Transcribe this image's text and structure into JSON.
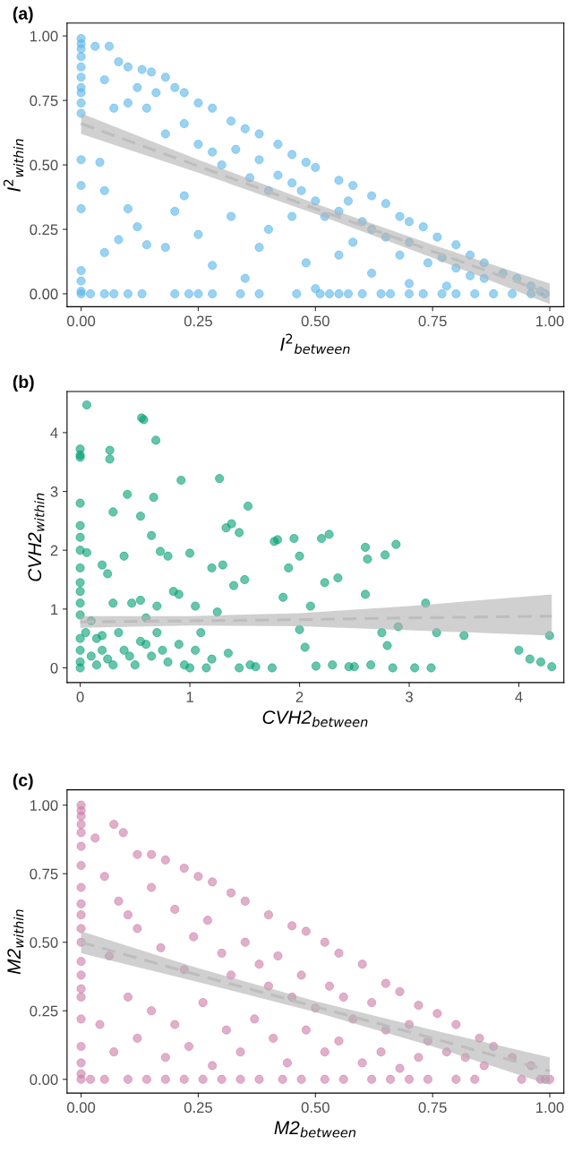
{
  "chart_data": [
    {
      "type": "scatter",
      "title": "(a)",
      "xlabel": "I$^{2}$$_{between}$",
      "ylabel": "I$^{2}$$_{within}$",
      "xlim": [
        -0.03,
        1.03
      ],
      "ylim": [
        -0.05,
        1.05
      ],
      "xticks": [
        {
          "value": 0,
          "label": "0.00"
        },
        {
          "value": 0.25,
          "label": "0.25"
        },
        {
          "value": 0.5,
          "label": "0.50"
        },
        {
          "value": 0.75,
          "label": "0.75"
        },
        {
          "value": 1,
          "label": "1.00"
        }
      ],
      "yticks": [
        {
          "value": 0,
          "label": "0.00"
        },
        {
          "value": 0.25,
          "label": "0.25"
        },
        {
          "value": 0.5,
          "label": "0.50"
        },
        {
          "value": 0.75,
          "label": "0.75"
        },
        {
          "value": 1,
          "label": "1.00"
        }
      ],
      "series": [
        {
          "marker": "circle",
          "color": "#56b4e9",
          "x": [
            0,
            0,
            0,
            0,
            0,
            0,
            0,
            0,
            0,
            0,
            0,
            0,
            0,
            0,
            0,
            0,
            0,
            0.03,
            0.06,
            0.08,
            0.1,
            0.13,
            0.15,
            0.18,
            0.2,
            0.22,
            0.25,
            0.28,
            0.32,
            0.35,
            0.38,
            0.42,
            0.45,
            0.48,
            0.5,
            0.55,
            0.58,
            0.62,
            0.65,
            0.68,
            0.7,
            0.73,
            0.76,
            0.8,
            0.83,
            0.86,
            0.9,
            0.93,
            0.96,
            0.98,
            0.05,
            0.07,
            0.1,
            0.12,
            0.14,
            0.16,
            0.18,
            0.22,
            0.25,
            0.28,
            0.3,
            0.33,
            0.36,
            0.38,
            0.4,
            0.42,
            0.45,
            0.47,
            0.5,
            0.52,
            0.55,
            0.57,
            0.6,
            0.62,
            0.65,
            0.68,
            0.7,
            0.74,
            0.77,
            0.8,
            0.83,
            0.86,
            0.04,
            0.05,
            0.08,
            0.05,
            0.1,
            0.12,
            0.14,
            0.18,
            0.2,
            0.22,
            0.25,
            0.28,
            0.32,
            0.35,
            0.38,
            0.4,
            0.45,
            0.48,
            0.5,
            0.55,
            0.58,
            0.62,
            0.7,
            0.78,
            0.02,
            0.05,
            0.07,
            0.1,
            0.13,
            0.2,
            0.23,
            0.25,
            0.28,
            0.34,
            0.38,
            0.46,
            0.51,
            0.53,
            0.55,
            0.57,
            0.6,
            0.64,
            0.66,
            0.7,
            0.73,
            0.77,
            0.8,
            0.84,
            0.88,
            0.92,
            0.96,
            0.99
          ],
          "values": [
            0.99,
            0.97,
            0.95,
            0.92,
            0.88,
            0.84,
            0.8,
            0.78,
            0.74,
            0.7,
            0.52,
            0.42,
            0.33,
            0.09,
            0.05,
            0.01,
            0,
            0.96,
            0.96,
            0.9,
            0.88,
            0.87,
            0.86,
            0.84,
            0.8,
            0.78,
            0.74,
            0.72,
            0.67,
            0.64,
            0.62,
            0.58,
            0.54,
            0.51,
            0.49,
            0.44,
            0.42,
            0.38,
            0.35,
            0.3,
            0.28,
            0.26,
            0.22,
            0.19,
            0.15,
            0.12,
            0.08,
            0.06,
            0.03,
            0.01,
            0.83,
            0.72,
            0.74,
            0.8,
            0.72,
            0.78,
            0.62,
            0.66,
            0.58,
            0.55,
            0.5,
            0.56,
            0.45,
            0.52,
            0.4,
            0.46,
            0.43,
            0.4,
            0.36,
            0.3,
            0.32,
            0.36,
            0.28,
            0.25,
            0.22,
            0.15,
            0.2,
            0.12,
            0.14,
            0.1,
            0.07,
            0.06,
            0.51,
            0.4,
            0.21,
            0.16,
            0.33,
            0.26,
            0.19,
            0.18,
            0.32,
            0.38,
            0.23,
            0.11,
            0.3,
            0.06,
            0.18,
            0.25,
            0.3,
            0.12,
            0.02,
            0.15,
            0.2,
            0.08,
            0.04,
            0.03,
            0,
            0,
            0,
            0,
            0,
            0,
            0,
            0,
            0,
            0,
            0,
            0,
            0,
            0,
            0,
            0,
            0,
            0,
            0,
            0,
            0,
            0,
            0,
            0,
            0,
            0,
            0,
            0
          ]
        },
        {
          "type": "line",
          "color": "#bdbdbd",
          "line_style": "dashed",
          "x": [
            0,
            0.25,
            0.5,
            0.75,
            1
          ],
          "values": [
            0.66,
            0.495,
            0.33,
            0.165,
            0.0
          ],
          "lower": [
            0.62,
            0.47,
            0.31,
            0.14,
            -0.04
          ],
          "upper": [
            0.7,
            0.52,
            0.35,
            0.19,
            0.04
          ]
        }
      ]
    },
    {
      "type": "scatter",
      "title": "(b)",
      "xlabel": "CVH2$_{between}$",
      "ylabel": "CVH2$_{within}$",
      "xlim": [
        -0.12,
        4.41
      ],
      "ylim": [
        -0.25,
        4.7
      ],
      "xticks": [
        0,
        1,
        2,
        3,
        4
      ],
      "yticks": [
        0,
        1,
        2,
        3,
        4
      ],
      "series": [
        {
          "marker": "circle",
          "color": "#009e73",
          "x": [
            0.06,
            0,
            0,
            0,
            0.27,
            0.27,
            0.56,
            0.58,
            0.69,
            0.92,
            1.27,
            0,
            0,
            0,
            0,
            0.06,
            0,
            0,
            0,
            0,
            0,
            0,
            0,
            0,
            0,
            0.3,
            0.43,
            0.55,
            0.67,
            0.65,
            0.73,
            0.8,
            0.4,
            0.2,
            0.25,
            0.3,
            0.47,
            0.55,
            0.6,
            0.7,
            0.85,
            0.9,
            1.0,
            1.05,
            1.1,
            1.2,
            1.3,
            1.38,
            1.33,
            1.45,
            1.53,
            1.5,
            1.4,
            1.25,
            1.35,
            1.55,
            1.77,
            1.8,
            1.9,
            1.95,
            2.0,
            2.2,
            2.27,
            2.23,
            2.1,
            2.0,
            2.05,
            1.85,
            2.35,
            2.6,
            2.62,
            2.6,
            2.78,
            2.88,
            2.75,
            2.8,
            2.9,
            3.15,
            3.25,
            3.5,
            4.0,
            4.1,
            4.2,
            4.28,
            4.3,
            0.1,
            0.15,
            0.2,
            0.25,
            0.3,
            0.35,
            0.4,
            0.45,
            0.5,
            0.55,
            0.6,
            0.65,
            0.7,
            0.75,
            0.8,
            0.9,
            0.95,
            1.05,
            1.2,
            1.0,
            1.45,
            1.6,
            1.75,
            2.15,
            2.3,
            2.45,
            2.65,
            2.85,
            3.05,
            3.2,
            2.5,
            0.15,
            0.1,
            0.05,
            0.2,
            1.15
          ],
          "values": [
            4.47,
            3.72,
            3.62,
            3.58,
            3.7,
            3.55,
            4.25,
            4.22,
            3.87,
            3.19,
            3.22,
            2.8,
            2.42,
            2.22,
            2.0,
            1.96,
            1.7,
            1.45,
            1.3,
            1.1,
            0.9,
            0.5,
            0.3,
            0.1,
            0,
            2.65,
            2.95,
            2.58,
            2.9,
            2.25,
            1.98,
            1.9,
            1.9,
            1.75,
            1.6,
            1.1,
            1.1,
            1.15,
            0.85,
            1.05,
            1.3,
            1.25,
            1.95,
            1.05,
            0.6,
            1.7,
            1.75,
            2.45,
            2.38,
            2.3,
            2.75,
            1.5,
            1.4,
            0.95,
            0.25,
            0.05,
            2.15,
            2.18,
            1.7,
            2.2,
            1.9,
            2.2,
            2.27,
            1.45,
            1.05,
            0.65,
            0.35,
            1.2,
            1.53,
            2.05,
            1.85,
            1.25,
            1.92,
            2.1,
            0.6,
            0.38,
            0.7,
            1.1,
            0.6,
            0.55,
            0.3,
            0.15,
            0.1,
            0.55,
            0.02,
            0.8,
            0.5,
            0.3,
            0.15,
            0.05,
            0.6,
            0.3,
            0.2,
            0.05,
            0.45,
            0.4,
            0.2,
            0.6,
            0.3,
            0.1,
            0.4,
            0.05,
            0.3,
            0.15,
            0,
            0,
            0.02,
            0,
            0.03,
            0.05,
            0.02,
            0.05,
            0,
            0,
            0,
            0.02,
            0.05,
            0.2,
            0.6,
            0.55,
            0
          ]
        },
        {
          "type": "line",
          "color": "#bdbdbd",
          "line_style": "dashed",
          "x": [
            0,
            1,
            2,
            3,
            4.3
          ],
          "values": [
            0.78,
            0.8,
            0.82,
            0.85,
            0.88
          ],
          "lower": [
            0.68,
            0.72,
            0.71,
            0.64,
            0.55
          ],
          "upper": [
            0.88,
            0.88,
            0.93,
            1.05,
            1.25
          ]
        }
      ]
    },
    {
      "type": "scatter",
      "title": "(c)",
      "xlabel": "M2$_{between}$",
      "ylabel": "M2$_{within}$",
      "xlim": [
        -0.03,
        1.03
      ],
      "ylim": [
        -0.05,
        1.056
      ],
      "xticks": [
        {
          "value": 0,
          "label": "0.00"
        },
        {
          "value": 0.25,
          "label": "0.25"
        },
        {
          "value": 0.5,
          "label": "0.50"
        },
        {
          "value": 0.75,
          "label": "0.75"
        },
        {
          "value": 1,
          "label": "1.00"
        }
      ],
      "yticks": [
        {
          "value": 0,
          "label": "0.00"
        },
        {
          "value": 0.25,
          "label": "0.25"
        },
        {
          "value": 0.5,
          "label": "0.50"
        },
        {
          "value": 0.75,
          "label": "0.75"
        },
        {
          "value": 1,
          "label": "1.00"
        }
      ],
      "series": [
        {
          "marker": "circle",
          "color": "#cc79a7",
          "x": [
            0,
            0,
            0,
            0,
            0,
            0,
            0,
            0,
            0,
            0,
            0,
            0,
            0,
            0,
            0,
            0,
            0,
            0,
            0,
            0,
            0,
            0.03,
            0.07,
            0.09,
            0.12,
            0.15,
            0.18,
            0.22,
            0.25,
            0.28,
            0.32,
            0.35,
            0.4,
            0.45,
            0.48,
            0.52,
            0.55,
            0.6,
            0.65,
            0.68,
            0.72,
            0.76,
            0.8,
            0.85,
            0.88,
            0.92,
            0.96,
            1.0,
            0.98,
            0.05,
            0.06,
            0.08,
            0.1,
            0.12,
            0.15,
            0.17,
            0.2,
            0.22,
            0.24,
            0.27,
            0.3,
            0.32,
            0.35,
            0.38,
            0.4,
            0.42,
            0.45,
            0.47,
            0.5,
            0.53,
            0.56,
            0.58,
            0.62,
            0.65,
            0.7,
            0.74,
            0.78,
            0.82,
            0.86,
            0.04,
            0.07,
            0.1,
            0.12,
            0.15,
            0.18,
            0.2,
            0.23,
            0.26,
            0.28,
            0.31,
            0.34,
            0.37,
            0.41,
            0.44,
            0.48,
            0.52,
            0.55,
            0.6,
            0.64,
            0.68,
            0.72,
            0.02,
            0.05,
            0.1,
            0.14,
            0.18,
            0.22,
            0.26,
            0.3,
            0.34,
            0.38,
            0.43,
            0.47,
            0.52,
            0.56,
            0.62,
            0.66,
            0.7,
            0.74,
            0.8,
            0.84,
            0.94,
            0.99
          ],
          "values": [
            1.0,
            0.98,
            0.96,
            0.93,
            0.9,
            0.85,
            0.78,
            0.7,
            0.64,
            0.6,
            0.55,
            0.5,
            0.43,
            0.38,
            0.33,
            0.3,
            0.22,
            0.12,
            0.06,
            0.02,
            0,
            0.88,
            0.93,
            0.9,
            0.82,
            0.82,
            0.8,
            0.77,
            0.74,
            0.72,
            0.68,
            0.65,
            0.6,
            0.56,
            0.54,
            0.5,
            0.46,
            0.42,
            0.35,
            0.32,
            0.27,
            0.24,
            0.2,
            0.15,
            0.12,
            0.08,
            0.05,
            0,
            0,
            0.74,
            0.45,
            0.65,
            0.6,
            0.55,
            0.7,
            0.48,
            0.62,
            0.4,
            0.52,
            0.58,
            0.46,
            0.38,
            0.5,
            0.42,
            0.34,
            0.45,
            0.3,
            0.38,
            0.26,
            0.34,
            0.3,
            0.22,
            0.28,
            0.18,
            0.2,
            0.14,
            0.1,
            0.08,
            0.05,
            0.2,
            0.1,
            0.3,
            0.15,
            0.25,
            0.08,
            0.2,
            0.12,
            0.28,
            0.05,
            0.18,
            0.1,
            0.22,
            0.15,
            0.06,
            0.18,
            0.1,
            0.14,
            0.06,
            0.1,
            0.04,
            0.08,
            0,
            0,
            0,
            0,
            0,
            0,
            0,
            0,
            0,
            0,
            0,
            0,
            0,
            0,
            0,
            0,
            0,
            0,
            0,
            0,
            0,
            0
          ]
        },
        {
          "type": "line",
          "color": "#bdbdbd",
          "line_style": "dashed",
          "x": [
            0,
            0.25,
            0.5,
            0.75,
            1
          ],
          "values": [
            0.5,
            0.38,
            0.265,
            0.15,
            0.03
          ],
          "lower": [
            0.46,
            0.355,
            0.245,
            0.12,
            -0.02
          ],
          "upper": [
            0.54,
            0.405,
            0.285,
            0.18,
            0.08
          ]
        }
      ]
    }
  ]
}
